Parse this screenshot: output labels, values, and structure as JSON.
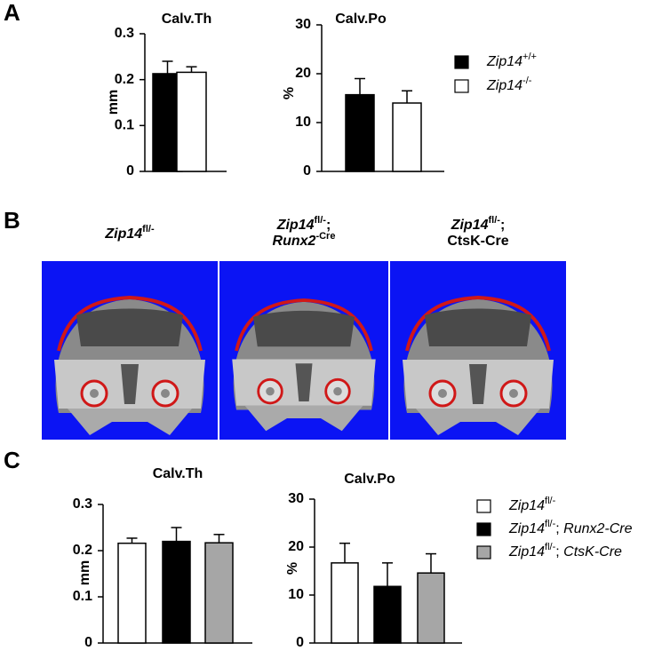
{
  "panel_labels": [
    "A",
    "B",
    "C"
  ],
  "images": [
    {
      "caption": [
        "Zip14fl/-"
      ]
    },
    {
      "caption": [
        "Zip14fl/-;",
        "Runx2-Cre"
      ]
    },
    {
      "caption": [
        "Zip14fl/-;",
        "CtsK-Cre"
      ]
    }
  ],
  "chart_data": [
    {
      "type": "bar",
      "title": "Calv.Th",
      "y_label": "mm",
      "ylim": [
        0,
        0.3
      ],
      "yticks": [
        0,
        0.1,
        0.2,
        0.3
      ],
      "series": [
        {
          "color": "#000000",
          "values": [
            0.213
          ],
          "errors": [
            0.027
          ]
        },
        {
          "color": "#ffffff",
          "values": [
            0.216
          ],
          "errors": [
            0.012
          ]
        }
      ]
    },
    {
      "type": "bar",
      "title": "Calv.Po",
      "y_label": "%",
      "ylim": [
        0,
        30
      ],
      "yticks": [
        0,
        10,
        20,
        30
      ],
      "legend": "right",
      "series": [
        {
          "name": "Zip14+/+",
          "color": "#000000",
          "values": [
            15.7
          ],
          "errors": [
            3.3
          ]
        },
        {
          "name": "Zip14-/-",
          "color": "#ffffff",
          "values": [
            14.0
          ],
          "errors": [
            2.5
          ]
        }
      ]
    },
    {
      "type": "bar",
      "title": "Calv.Th",
      "y_label": "mm",
      "ylim": [
        0,
        0.3
      ],
      "yticks": [
        0,
        0.1,
        0.2,
        0.3
      ],
      "series": [
        {
          "color": "#ffffff",
          "values": [
            0.216
          ],
          "errors": [
            0.011
          ]
        },
        {
          "color": "#000000",
          "values": [
            0.22
          ],
          "errors": [
            0.03
          ]
        },
        {
          "color": "#a6a6a6",
          "values": [
            0.217
          ],
          "errors": [
            0.018
          ]
        }
      ]
    },
    {
      "type": "bar",
      "title": "Calv.Po",
      "y_label": "%",
      "ylim": [
        0,
        30
      ],
      "yticks": [
        0,
        10,
        20,
        30
      ],
      "legend": "right",
      "series": [
        {
          "name": "Zip14fl/-",
          "color": "#ffffff",
          "values": [
            16.7
          ],
          "errors": [
            4.1
          ]
        },
        {
          "name": "Zip14fl/-; Runx2-Cre",
          "color": "#000000",
          "values": [
            11.8
          ],
          "errors": [
            4.9
          ]
        },
        {
          "name": "Zip14fl/-; CtsK-Cre",
          "color": "#a6a6a6",
          "values": [
            14.6
          ],
          "errors": [
            4.0
          ]
        }
      ]
    }
  ]
}
